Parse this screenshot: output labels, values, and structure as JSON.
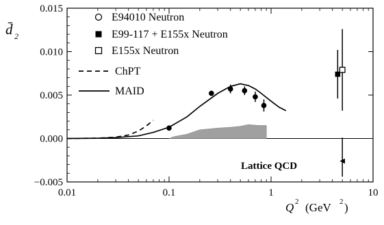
{
  "chart_data": {
    "type": "scatter",
    "xscale": "log",
    "xlim": [
      0.01,
      10
    ],
    "ylim": [
      -0.005,
      0.015
    ],
    "grid": false,
    "legend_position": "top-left",
    "ylabel": "d̄",
    "ylabel_sub": "2",
    "xlabel": {
      "q": "Q",
      "sup": "2",
      "unit_open": "(GeV",
      "unit_sup": "2",
      "unit_close": ")"
    },
    "xticks": [
      {
        "value": 0.01,
        "label": "0.01"
      },
      {
        "value": 0.1,
        "label": "0.1"
      },
      {
        "value": 1,
        "label": "1"
      },
      {
        "value": 10,
        "label": "10"
      }
    ],
    "yticks": [
      {
        "value": -0.005,
        "label": "−0.005"
      },
      {
        "value": 0.0,
        "label": "0.000"
      },
      {
        "value": 0.005,
        "label": "0.005"
      },
      {
        "value": 0.01,
        "label": "0.010"
      },
      {
        "value": 0.015,
        "label": "0.015"
      }
    ],
    "series": [
      {
        "name": "E94010 Neutron",
        "marker": "open-circle",
        "points": [
          {
            "x": 0.1,
            "y": 0.0012,
            "err": 0.0002
          },
          {
            "x": 0.26,
            "y": 0.0052,
            "err": 0.0003
          },
          {
            "x": 0.4,
            "y": 0.0057,
            "err": 0.0005
          },
          {
            "x": 0.55,
            "y": 0.0055,
            "err": 0.0005
          },
          {
            "x": 0.7,
            "y": 0.0048,
            "err": 0.0006
          },
          {
            "x": 0.85,
            "y": 0.0038,
            "err": 0.0007
          }
        ]
      },
      {
        "name": "E99-117 + E155x Neutron",
        "marker": "filled-square",
        "points": [
          {
            "x": 4.5,
            "y": 0.0074,
            "err": 0.0028
          }
        ]
      },
      {
        "name": "E155x Neutron",
        "marker": "open-square",
        "points": [
          {
            "x": 5.0,
            "y": 0.0079,
            "err": 0.0047
          }
        ]
      },
      {
        "name": "ChPT",
        "style": "dashed-line",
        "points": [
          {
            "x": 0.01,
            "y": 0.0
          },
          {
            "x": 0.02,
            "y": 4e-05
          },
          {
            "x": 0.03,
            "y": 0.00015
          },
          {
            "x": 0.04,
            "y": 0.0004
          },
          {
            "x": 0.05,
            "y": 0.00085
          },
          {
            "x": 0.06,
            "y": 0.00145
          },
          {
            "x": 0.07,
            "y": 0.0021
          }
        ]
      },
      {
        "name": "MAID",
        "style": "solid-line",
        "points": [
          {
            "x": 0.01,
            "y": 0.0
          },
          {
            "x": 0.02,
            "y": 3e-05
          },
          {
            "x": 0.03,
            "y": 0.0001
          },
          {
            "x": 0.05,
            "y": 0.0003
          },
          {
            "x": 0.07,
            "y": 0.0007
          },
          {
            "x": 0.1,
            "y": 0.0013
          },
          {
            "x": 0.15,
            "y": 0.0025
          },
          {
            "x": 0.2,
            "y": 0.0037
          },
          {
            "x": 0.3,
            "y": 0.0052
          },
          {
            "x": 0.4,
            "y": 0.006
          },
          {
            "x": 0.5,
            "y": 0.0063
          },
          {
            "x": 0.6,
            "y": 0.0061
          },
          {
            "x": 0.7,
            "y": 0.0057
          },
          {
            "x": 0.8,
            "y": 0.0052
          },
          {
            "x": 1.0,
            "y": 0.0043
          },
          {
            "x": 1.2,
            "y": 0.0036
          },
          {
            "x": 1.4,
            "y": 0.0032
          }
        ]
      },
      {
        "name": "Lattice QCD",
        "marker": "filled-triangle-left",
        "points": [
          {
            "x": 5.0,
            "y": -0.0026,
            "err_low": 0.0018,
            "err_high": 0.0027
          }
        ]
      }
    ],
    "systematic_band": [
      {
        "x": 0.1,
        "y": 0.0
      },
      {
        "x": 0.11,
        "y": 0.0002
      },
      {
        "x": 0.15,
        "y": 0.0005
      },
      {
        "x": 0.2,
        "y": 0.001
      },
      {
        "x": 0.3,
        "y": 0.0012
      },
      {
        "x": 0.4,
        "y": 0.0013
      },
      {
        "x": 0.5,
        "y": 0.0014
      },
      {
        "x": 0.6,
        "y": 0.0016
      },
      {
        "x": 0.75,
        "y": 0.0015
      },
      {
        "x": 0.9,
        "y": 0.0015
      },
      {
        "x": 0.9,
        "y": 0.0
      }
    ],
    "band_color": "#a0a0a0",
    "annotation": "Lattice QCD",
    "legend": [
      {
        "label": "E94010 Neutron",
        "symbol": "open-circle"
      },
      {
        "label": "E99-117 + E155x Neutron",
        "symbol": "filled-square"
      },
      {
        "label": "E155x Neutron",
        "symbol": "open-square"
      },
      {
        "label": "ChPT",
        "symbol": "dashed-line"
      },
      {
        "label": "MAID",
        "symbol": "solid-line"
      }
    ]
  }
}
